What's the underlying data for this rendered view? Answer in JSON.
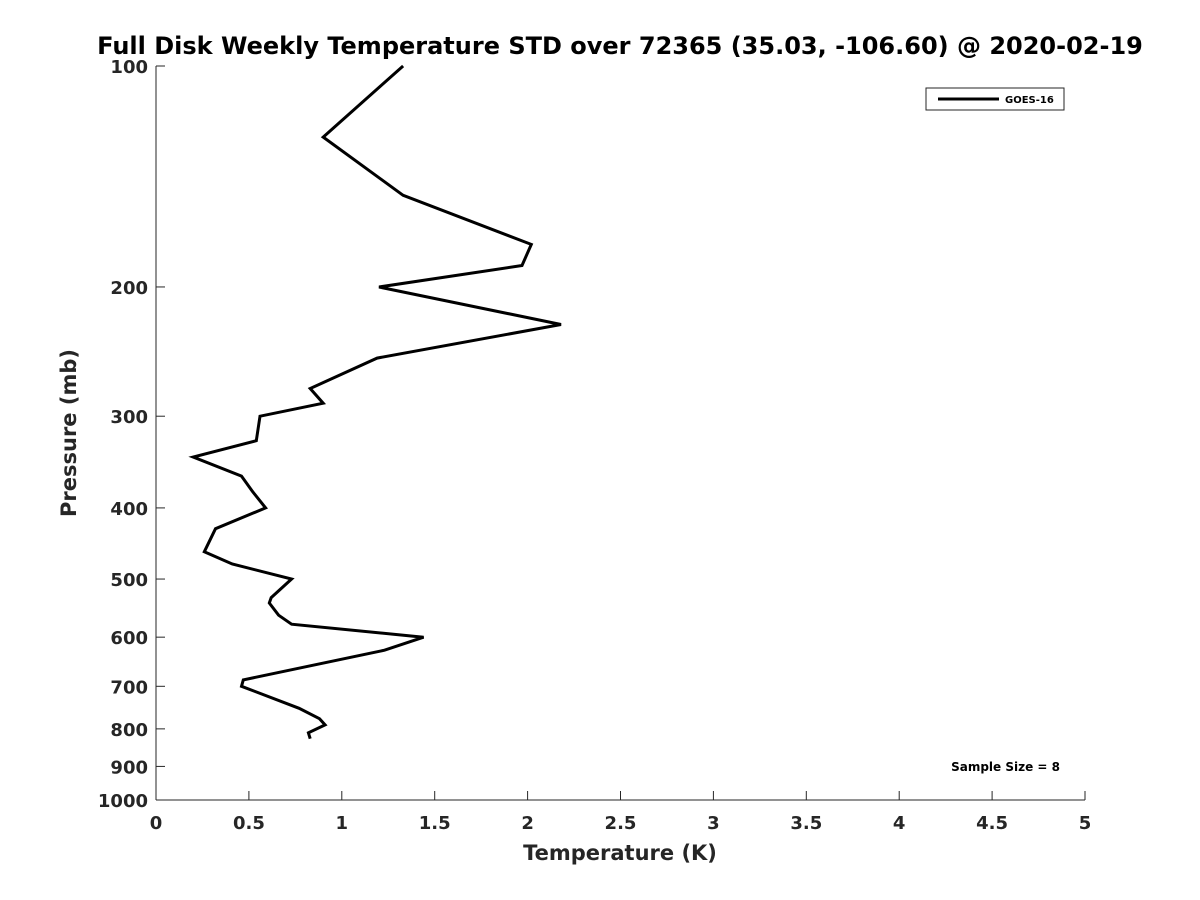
{
  "chart_data": {
    "type": "line",
    "title": "Full Disk Weekly Temperature STD over 72365 (35.03, -106.60) @ 2020-02-19",
    "xlabel": "Temperature (K)",
    "ylabel": "Pressure (mb)",
    "xlim": [
      0,
      5
    ],
    "ylim": [
      100,
      1000
    ],
    "y_scale": "log",
    "y_reversed": true,
    "grid": false,
    "x_ticks": [
      0,
      0.5,
      1,
      1.5,
      2,
      2.5,
      3,
      3.5,
      4,
      4.5,
      5
    ],
    "x_tick_labels": [
      "0",
      "0.5",
      "1",
      "1.5",
      "2",
      "2.5",
      "3",
      "3.5",
      "4",
      "4.5",
      "5"
    ],
    "y_ticks": [
      100,
      200,
      300,
      400,
      500,
      600,
      700,
      800,
      900,
      1000
    ],
    "y_tick_labels": [
      "100",
      "200",
      "300",
      "400",
      "500",
      "600",
      "700",
      "800",
      "900",
      "1000"
    ],
    "legend_placement": "top-right",
    "annotation": "Sample Size = 8",
    "series": [
      {
        "name": "GOES-16",
        "color": "#000000",
        "points": [
          {
            "x": 1.33,
            "p": 100
          },
          {
            "x": 0.9,
            "p": 125
          },
          {
            "x": 1.33,
            "p": 150
          },
          {
            "x": 2.02,
            "p": 175
          },
          {
            "x": 1.97,
            "p": 187
          },
          {
            "x": 1.2,
            "p": 200
          },
          {
            "x": 2.18,
            "p": 225
          },
          {
            "x": 1.19,
            "p": 250
          },
          {
            "x": 0.83,
            "p": 275
          },
          {
            "x": 0.9,
            "p": 288
          },
          {
            "x": 0.56,
            "p": 300
          },
          {
            "x": 0.54,
            "p": 324
          },
          {
            "x": 0.2,
            "p": 341
          },
          {
            "x": 0.46,
            "p": 362
          },
          {
            "x": 0.52,
            "p": 380
          },
          {
            "x": 0.59,
            "p": 400
          },
          {
            "x": 0.32,
            "p": 427
          },
          {
            "x": 0.26,
            "p": 459
          },
          {
            "x": 0.41,
            "p": 477
          },
          {
            "x": 0.73,
            "p": 500
          },
          {
            "x": 0.62,
            "p": 530
          },
          {
            "x": 0.61,
            "p": 539
          },
          {
            "x": 0.66,
            "p": 560
          },
          {
            "x": 0.73,
            "p": 576
          },
          {
            "x": 1.44,
            "p": 600
          },
          {
            "x": 1.23,
            "p": 625
          },
          {
            "x": 0.47,
            "p": 686
          },
          {
            "x": 0.46,
            "p": 700
          },
          {
            "x": 0.77,
            "p": 750
          },
          {
            "x": 0.88,
            "p": 775
          },
          {
            "x": 0.91,
            "p": 790
          },
          {
            "x": 0.82,
            "p": 810
          },
          {
            "x": 0.83,
            "p": 825
          }
        ]
      }
    ]
  }
}
